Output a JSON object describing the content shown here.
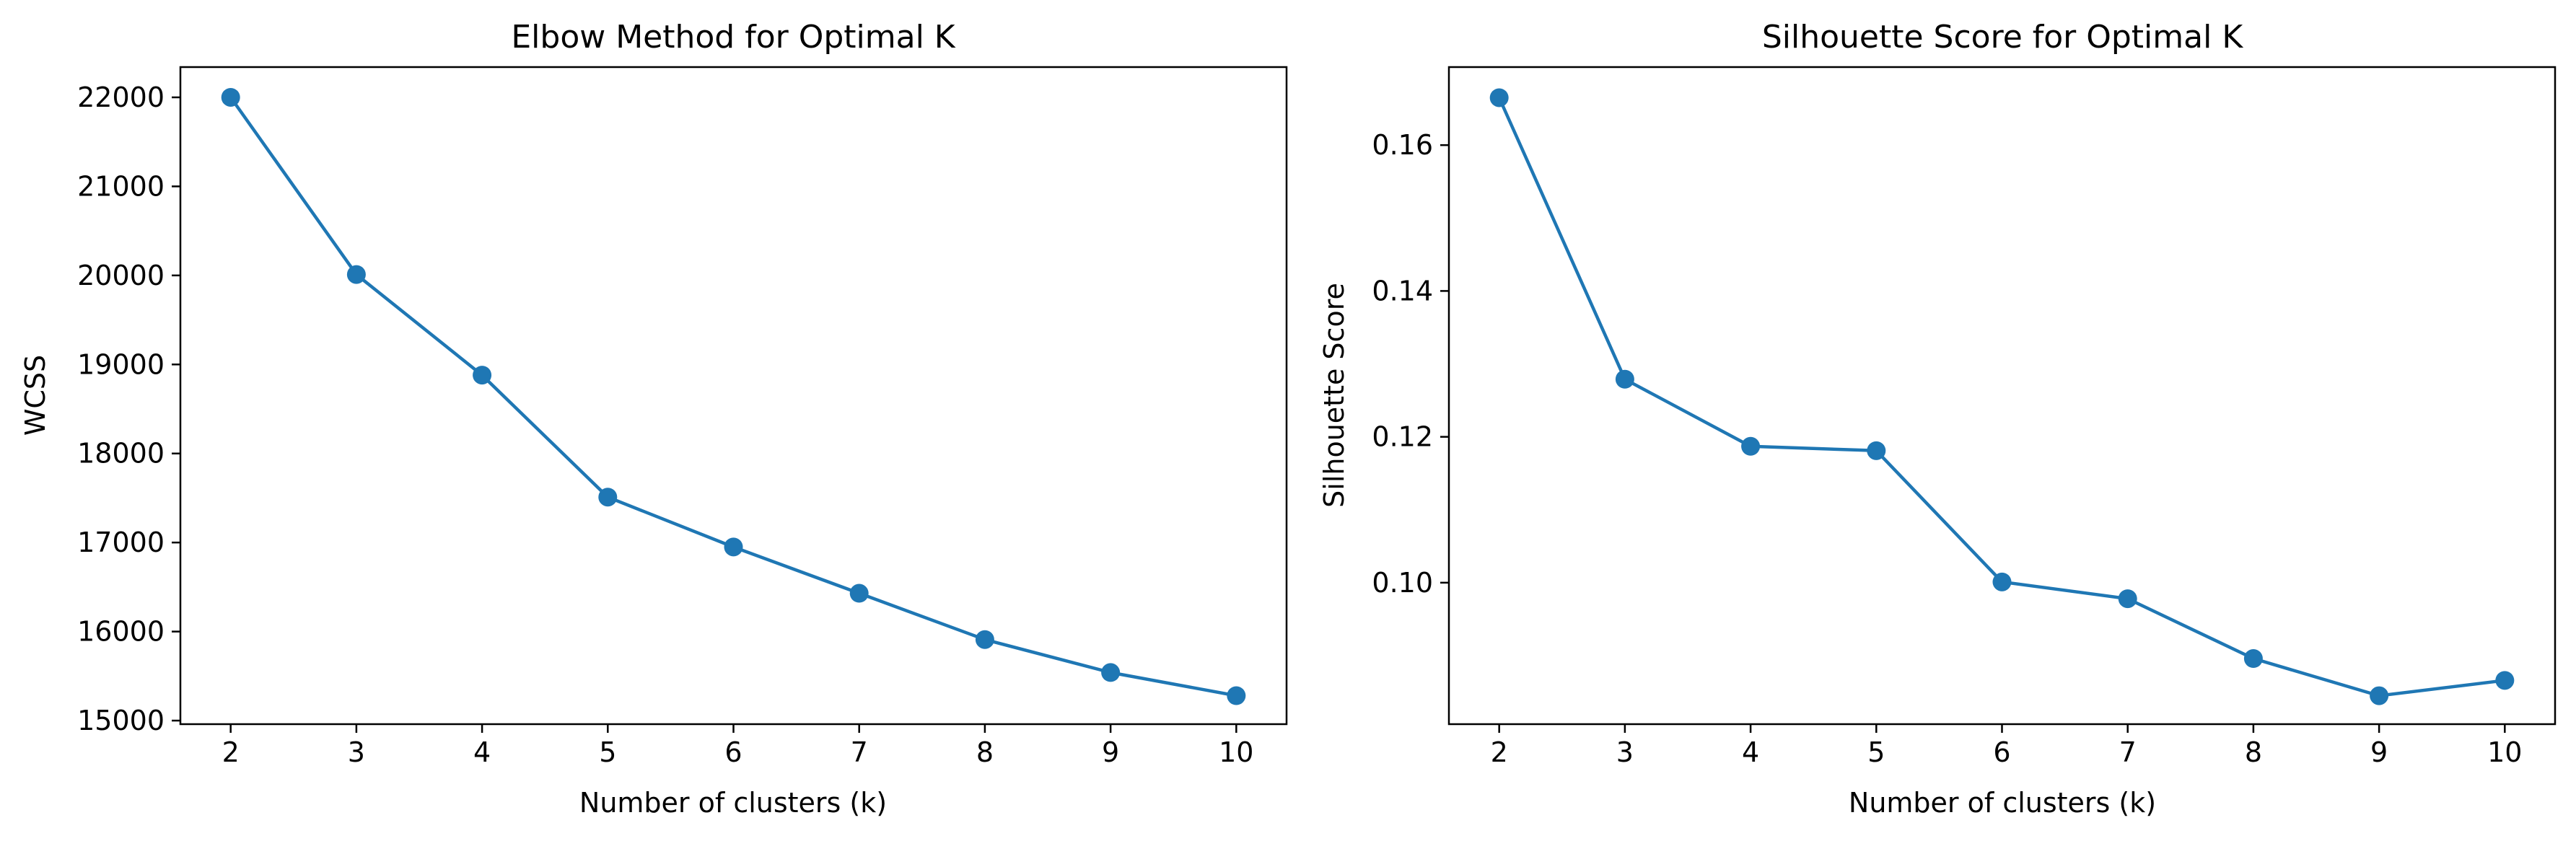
{
  "colors": {
    "series": "#1f77b4"
  },
  "chart_data": [
    {
      "type": "line",
      "title": "Elbow Method for Optimal K",
      "xlabel": "Number of clusters (k)",
      "ylabel": "WCSS",
      "x": [
        2,
        3,
        4,
        5,
        6,
        7,
        8,
        9,
        10
      ],
      "values": [
        22000,
        20010,
        18880,
        17510,
        16950,
        16430,
        15910,
        15540,
        15280
      ],
      "xlim": [
        1.6,
        10.4
      ],
      "ylim": [
        14960,
        22340
      ],
      "xticks": [
        "2",
        "3",
        "4",
        "5",
        "6",
        "7",
        "8",
        "9",
        "10"
      ],
      "xtick_values": [
        2,
        3,
        4,
        5,
        6,
        7,
        8,
        9,
        10
      ],
      "yticks": [
        "15000",
        "16000",
        "17000",
        "18000",
        "19000",
        "20000",
        "21000",
        "22000"
      ],
      "ytick_values": [
        15000,
        16000,
        17000,
        18000,
        19000,
        20000,
        21000,
        22000
      ],
      "marker": "circle",
      "grid": false
    },
    {
      "type": "line",
      "title": "Silhouette Score for Optimal K",
      "xlabel": "Number of clusters (k)",
      "ylabel": "Silhouette Score",
      "x": [
        2,
        3,
        4,
        5,
        6,
        7,
        8,
        9,
        10
      ],
      "values": [
        0.1665,
        0.1279,
        0.1187,
        0.1181,
        0.1001,
        0.0978,
        0.0896,
        0.0845,
        0.0866
      ],
      "xlim": [
        1.6,
        10.4
      ],
      "ylim": [
        0.0806,
        0.1707
      ],
      "xticks": [
        "2",
        "3",
        "4",
        "5",
        "6",
        "7",
        "8",
        "9",
        "10"
      ],
      "xtick_values": [
        2,
        3,
        4,
        5,
        6,
        7,
        8,
        9,
        10
      ],
      "yticks": [
        "0.10",
        "0.12",
        "0.14",
        "0.16"
      ],
      "ytick_values": [
        0.1,
        0.12,
        0.14,
        0.16
      ],
      "marker": "circle",
      "grid": false
    }
  ]
}
